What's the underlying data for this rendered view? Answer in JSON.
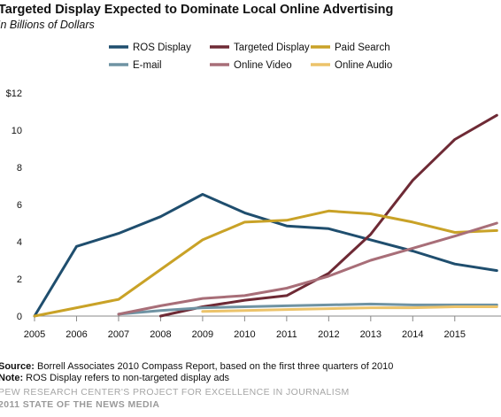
{
  "header": {
    "title": "Targeted Display Expected to Dominate Local Online Advertising",
    "subtitle": "In Billions of Dollars"
  },
  "chart_data": {
    "type": "line",
    "title": "Targeted Display Expected to Dominate Local Online Advertising",
    "subtitle": "In Billions of Dollars",
    "xlabel": "",
    "ylabel": "",
    "x": [
      2005,
      2006,
      2007,
      2008,
      2009,
      2010,
      2011,
      2012,
      2013,
      2014,
      2015,
      2016
    ],
    "x_tick_labels": [
      "2005",
      "2006",
      "2007",
      "2008",
      "2009",
      "2010",
      "2011",
      "2012",
      "2013",
      "2014",
      "2015"
    ],
    "y_ticks": [
      0,
      2,
      4,
      6,
      8,
      10,
      12
    ],
    "y_tick_labels": [
      "0",
      "2",
      "4",
      "6",
      "8",
      "10",
      "$12"
    ],
    "ylim": [
      0,
      12
    ],
    "grid": false,
    "legend_position": "top",
    "series": [
      {
        "name": "ROS Display",
        "color": "#1f4e6e",
        "values": [
          0,
          3.75,
          4.45,
          5.35,
          6.55,
          5.55,
          4.85,
          4.7,
          4.1,
          3.5,
          2.8,
          2.45
        ]
      },
      {
        "name": "Targeted Display",
        "color": "#6e2a35",
        "values": [
          null,
          null,
          null,
          0,
          0.5,
          0.85,
          1.1,
          2.3,
          4.4,
          7.3,
          9.5,
          10.8
        ]
      },
      {
        "name": "Paid Search",
        "color": "#c9a227",
        "values": [
          0,
          0.45,
          0.9,
          2.5,
          4.1,
          5.05,
          5.15,
          5.65,
          5.5,
          5.05,
          4.5,
          4.6
        ]
      },
      {
        "name": "E-mail",
        "color": "#6f93a3",
        "values": [
          null,
          null,
          0.1,
          0.3,
          0.45,
          0.5,
          0.55,
          0.6,
          0.65,
          0.6,
          0.6,
          0.6
        ]
      },
      {
        "name": "Online Video",
        "color": "#a86e78",
        "values": [
          null,
          null,
          0.1,
          0.55,
          0.95,
          1.1,
          1.5,
          2.15,
          3.0,
          3.65,
          4.3,
          5.0
        ]
      },
      {
        "name": "Online Audio",
        "color": "#ecc36a",
        "values": [
          null,
          null,
          null,
          null,
          0.25,
          0.3,
          0.35,
          0.4,
          0.45,
          0.45,
          0.5,
          0.5
        ]
      }
    ]
  },
  "footer": {
    "source_label": "Source:",
    "source_text": "Borrell Associates 2010 Compass Report, based on the first three quarters of 2010",
    "note_label": "Note:",
    "note_text": "ROS Display refers to non-targeted display ads",
    "pew_text": "PEW RESEARCH CENTER'S PROJECT FOR EXCELLENCE IN JOURNALISM",
    "sotnm_text": "2011 STATE OF THE NEWS MEDIA"
  }
}
